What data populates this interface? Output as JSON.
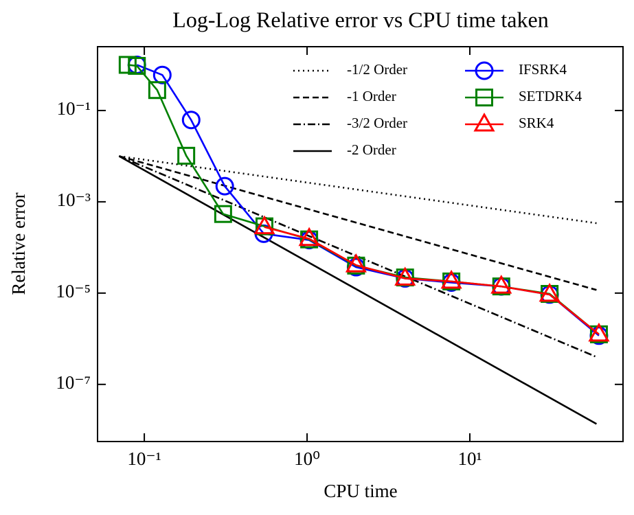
{
  "chart_data": {
    "type": "line",
    "title": "Log-Log Relative error vs CPU time taken",
    "x_label": "CPU time",
    "y_label": "Relative error",
    "x_scale": "log",
    "y_scale": "log",
    "xlim": [
      0.0516,
      87.3
    ],
    "ylim": [
      5.6e-09,
      2.5
    ],
    "xticks": [
      {
        "value": 0.1,
        "label": "10⁻¹"
      },
      {
        "value": 1,
        "label": "10⁰"
      },
      {
        "value": 10,
        "label": "10¹"
      }
    ],
    "yticks": [
      {
        "value": 0.1,
        "label": "10⁻¹"
      },
      {
        "value": 0.001,
        "label": "10⁻³"
      },
      {
        "value": 1e-05,
        "label": "10⁻⁵"
      },
      {
        "value": 1e-07,
        "label": "10⁻⁷"
      }
    ],
    "legend": "upper right",
    "legend_columns": 2,
    "series": [
      {
        "name": "-1/2 Order",
        "color": "#000000",
        "linestyle": "dotted",
        "x": [
          0.07,
          60
        ],
        "values": [
          0.01,
          0.00034
        ]
      },
      {
        "name": "-1 Order",
        "color": "#000000",
        "linestyle": "dashed",
        "x": [
          0.07,
          60
        ],
        "values": [
          0.01,
          1.17e-05
        ]
      },
      {
        "name": "-3/2 Order",
        "color": "#000000",
        "linestyle": "dashdot",
        "x": [
          0.07,
          60
        ],
        "values": [
          0.01,
          3.99e-07
        ]
      },
      {
        "name": "-2 Order",
        "color": "#000000",
        "linestyle": "solid",
        "x": [
          0.07,
          60
        ],
        "values": [
          0.01,
          1.36e-08
        ]
      },
      {
        "name": "IFSRK4",
        "color": "#0000ff",
        "linestyle": "solid",
        "marker": "circle",
        "x": [
          0.09,
          0.129,
          0.194,
          0.312,
          0.542,
          1.03,
          2.0,
          4.0,
          7.7,
          15.6,
          30.9,
          62.1
        ],
        "values": [
          1.0,
          0.6,
          0.062,
          0.0022,
          0.0002,
          0.000145,
          3.7e-05,
          2.1e-05,
          1.7e-05,
          1.4e-05,
          9.3e-06,
          1.17e-06
        ]
      },
      {
        "name": "SETDRK4",
        "color": "#008000",
        "linestyle": "solid",
        "marker": "square",
        "x": [
          0.079,
          0.09,
          0.12,
          0.181,
          0.305,
          0.547,
          1.03,
          2.0,
          4.0,
          7.7,
          15.6,
          30.9,
          62.1
        ],
        "values": [
          1.0,
          0.95,
          0.28,
          0.0102,
          0.00054,
          0.00029,
          0.00015,
          4e-05,
          2.2e-05,
          1.8e-05,
          1.4e-05,
          9.6e-06,
          1.25e-06
        ]
      },
      {
        "name": "SRK4",
        "color": "#ff0000",
        "linestyle": "solid",
        "marker": "triangle",
        "x": [
          0.547,
          1.03,
          2.0,
          4.0,
          7.7,
          15.6,
          30.9,
          62.1
        ],
        "values": [
          0.00028,
          0.000155,
          4.1e-05,
          2.1e-05,
          1.8e-05,
          1.4e-05,
          9.3e-06,
          1.25e-06
        ]
      }
    ]
  }
}
